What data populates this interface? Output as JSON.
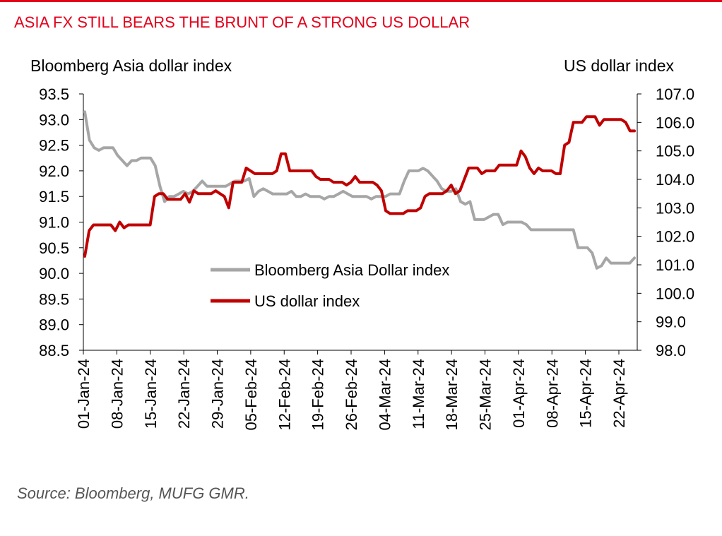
{
  "title": "ASIA FX STILL BEARS THE BRUNT OF A STRONG US DOLLAR",
  "source": "Source: Bloomberg, MUFG GMR.",
  "colors": {
    "title": "#e4001b",
    "asia": "#a6a6a6",
    "usd": "#c00000"
  },
  "chart_data": {
    "type": "line",
    "y_left_label": "Bloomberg Asia dollar index",
    "y_right_label": "US dollar index",
    "y_left_range": [
      88.5,
      93.5
    ],
    "y_left_ticks": [
      "93.5",
      "93.0",
      "92.5",
      "92.0",
      "91.5",
      "91.0",
      "90.5",
      "90.0",
      "89.5",
      "89.0",
      "88.5"
    ],
    "y_right_range": [
      98.0,
      107.0
    ],
    "y_right_ticks": [
      "107.0",
      "106.0",
      "105.0",
      "104.0",
      "103.0",
      "102.0",
      "101.0",
      "100.0",
      "99.0",
      "98.0"
    ],
    "x_tick_labels": [
      "01-Jan-24",
      "08-Jan-24",
      "15-Jan-24",
      "22-Jan-24",
      "29-Jan-24",
      "05-Feb-24",
      "12-Feb-24",
      "19-Feb-24",
      "26-Feb-24",
      "04-Mar-24",
      "11-Mar-24",
      "18-Mar-24",
      "25-Mar-24",
      "01-Apr-24",
      "08-Apr-24",
      "15-Apr-24",
      "22-Apr-24"
    ],
    "grid": false,
    "legend_position": "center",
    "series": [
      {
        "name": "Bloomberg Asia Dollar index",
        "axis": "left",
        "values": [
          93.15,
          92.6,
          92.45,
          92.4,
          92.45,
          92.45,
          92.45,
          92.3,
          92.2,
          92.1,
          92.2,
          92.2,
          92.25,
          92.25,
          92.25,
          92.1,
          91.7,
          91.4,
          91.5,
          91.5,
          91.55,
          91.6,
          91.55,
          91.6,
          91.7,
          91.8,
          91.7,
          91.7,
          91.7,
          91.7,
          91.7,
          91.75,
          91.8,
          91.8,
          91.8,
          91.85,
          91.5,
          91.6,
          91.65,
          91.6,
          91.55,
          91.55,
          91.55,
          91.55,
          91.6,
          91.5,
          91.5,
          91.55,
          91.5,
          91.5,
          91.5,
          91.45,
          91.5,
          91.5,
          91.55,
          91.6,
          91.55,
          91.5,
          91.5,
          91.5,
          91.5,
          91.45,
          91.5,
          91.5,
          91.5,
          91.55,
          91.55,
          91.55,
          91.8,
          92.0,
          92.0,
          92.0,
          92.05,
          92.0,
          91.9,
          91.8,
          91.65,
          91.6,
          91.6,
          91.65,
          91.4,
          91.35,
          91.4,
          91.05,
          91.05,
          91.05,
          91.1,
          91.15,
          91.15,
          90.95,
          91.0,
          91.0,
          91.0,
          91.0,
          90.95,
          90.85,
          90.85,
          90.85,
          90.85,
          90.85,
          90.85,
          90.85,
          90.85,
          90.85,
          90.85,
          90.5,
          90.5,
          90.5,
          90.4,
          90.1,
          90.15,
          90.3,
          90.2,
          90.2,
          90.2,
          90.2,
          90.2,
          90.3
        ]
      },
      {
        "name": "US dollar index",
        "axis": "right",
        "values": [
          101.3,
          102.2,
          102.4,
          102.4,
          102.4,
          102.4,
          102.4,
          102.2,
          102.5,
          102.3,
          102.4,
          102.4,
          102.4,
          102.4,
          102.4,
          102.4,
          103.4,
          103.5,
          103.5,
          103.3,
          103.3,
          103.3,
          103.3,
          103.5,
          103.2,
          103.6,
          103.5,
          103.5,
          103.5,
          103.5,
          103.6,
          103.5,
          103.4,
          103.0,
          103.9,
          103.9,
          103.9,
          104.4,
          104.3,
          104.2,
          104.2,
          104.2,
          104.2,
          104.2,
          104.3,
          104.9,
          104.9,
          104.3,
          104.3,
          104.3,
          104.3,
          104.3,
          104.3,
          104.1,
          104.0,
          104.0,
          104.0,
          103.9,
          103.9,
          103.9,
          103.8,
          103.9,
          104.1,
          103.9,
          103.9,
          103.9,
          103.9,
          103.8,
          103.6,
          102.9,
          102.8,
          102.8,
          102.8,
          102.8,
          102.9,
          102.9,
          102.9,
          103.0,
          103.4,
          103.5,
          103.5,
          103.5,
          103.5,
          103.6,
          103.8,
          103.5,
          103.6,
          104.0,
          104.4,
          104.4,
          104.4,
          104.2,
          104.3,
          104.3,
          104.3,
          104.5,
          104.5,
          104.5,
          104.5,
          104.5,
          105.0,
          104.8,
          104.4,
          104.2,
          104.4,
          104.3,
          104.3,
          104.3,
          104.2,
          104.2,
          105.2,
          105.3,
          106.0,
          106.0,
          106.0,
          106.2,
          106.2,
          106.2,
          105.9,
          106.1,
          106.1,
          106.1,
          106.1,
          106.1,
          106.0,
          105.7,
          105.7
        ]
      }
    ]
  }
}
